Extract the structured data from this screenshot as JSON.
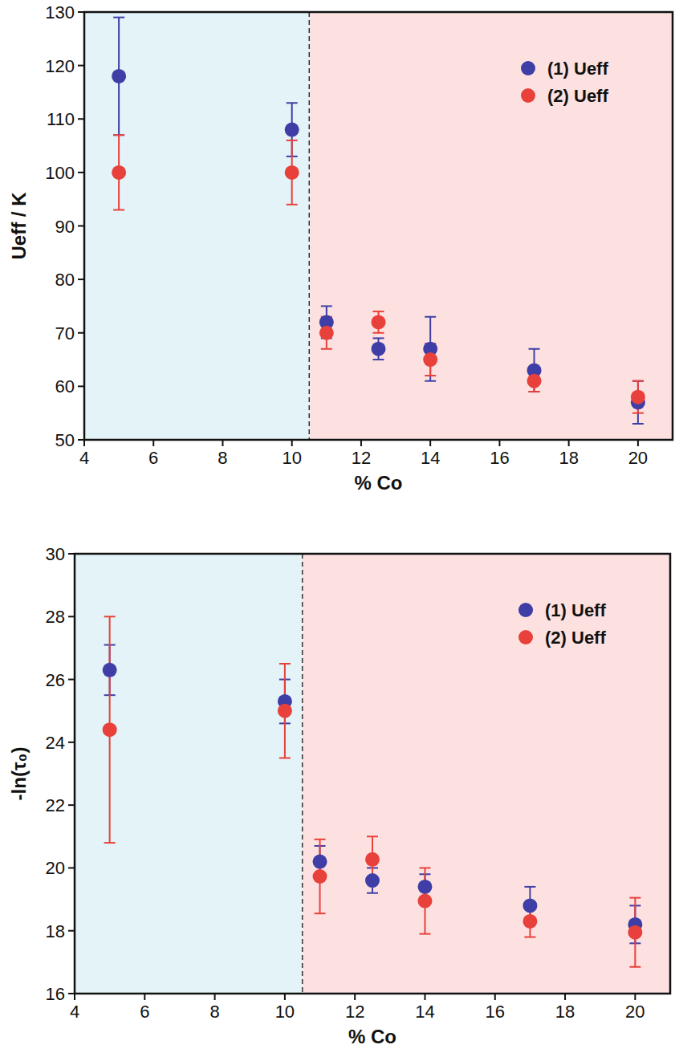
{
  "chart_data": [
    {
      "type": "scatter",
      "xlabel": "% Co",
      "ylabel": "Ueff / K",
      "xlim": [
        4,
        21
      ],
      "ylim": [
        50,
        130
      ],
      "xticks": [
        4,
        6,
        8,
        10,
        12,
        14,
        16,
        18,
        20
      ],
      "yticks": [
        50,
        60,
        70,
        80,
        90,
        100,
        110,
        120,
        130
      ],
      "x": [
        5,
        10,
        11,
        12.5,
        14,
        17,
        20
      ],
      "marker": "circle",
      "legend": "upper right",
      "grid": false,
      "regions": [
        {
          "from": 4,
          "to": 10.5,
          "color": "#e3f3f7"
        },
        {
          "from": 10.5,
          "to": 21,
          "color": "#fde1e1"
        }
      ],
      "vline": 10.5,
      "series": [
        {
          "name": "(1) Ueff",
          "color": "#3e3ea6",
          "values": [
            118,
            108,
            72,
            67,
            67,
            63,
            57
          ],
          "errors": [
            11,
            5,
            3,
            2,
            6,
            4,
            4
          ]
        },
        {
          "name": "(2) Ueff",
          "color": "#e8403a",
          "values": [
            100,
            100,
            70,
            72,
            65,
            61,
            58
          ],
          "errors": [
            7,
            6,
            3,
            2,
            3,
            2,
            3
          ]
        }
      ]
    },
    {
      "type": "scatter",
      "xlabel": "% Co",
      "ylabel": "-ln(τ₀)",
      "xlim": [
        4,
        21
      ],
      "ylim": [
        16,
        30
      ],
      "xticks": [
        4,
        6,
        8,
        10,
        12,
        14,
        16,
        18,
        20
      ],
      "yticks": [
        16,
        18,
        20,
        22,
        24,
        26,
        28,
        30
      ],
      "x": [
        5,
        10,
        11,
        12.5,
        14,
        17,
        20
      ],
      "marker": "circle",
      "legend": "upper right",
      "grid": false,
      "regions": [
        {
          "from": 4,
          "to": 10.5,
          "color": "#e3f3f7"
        },
        {
          "from": 10.5,
          "to": 21,
          "color": "#fde1e1"
        }
      ],
      "vline": 10.5,
      "series": [
        {
          "name": "(1) Ueff",
          "color": "#3e3ea6",
          "values": [
            26.3,
            25.3,
            20.2,
            19.6,
            19.4,
            18.8,
            18.2
          ],
          "errors": [
            0.8,
            0.7,
            0.5,
            0.4,
            0.4,
            0.6,
            0.6
          ]
        },
        {
          "name": "(2) Ueff",
          "color": "#e8403a",
          "values": [
            24.4,
            25.0,
            19.73,
            20.27,
            18.95,
            18.3,
            17.95
          ],
          "errors": [
            3.6,
            1.5,
            1.18,
            0.73,
            1.05,
            0.5,
            1.1
          ]
        }
      ]
    }
  ]
}
